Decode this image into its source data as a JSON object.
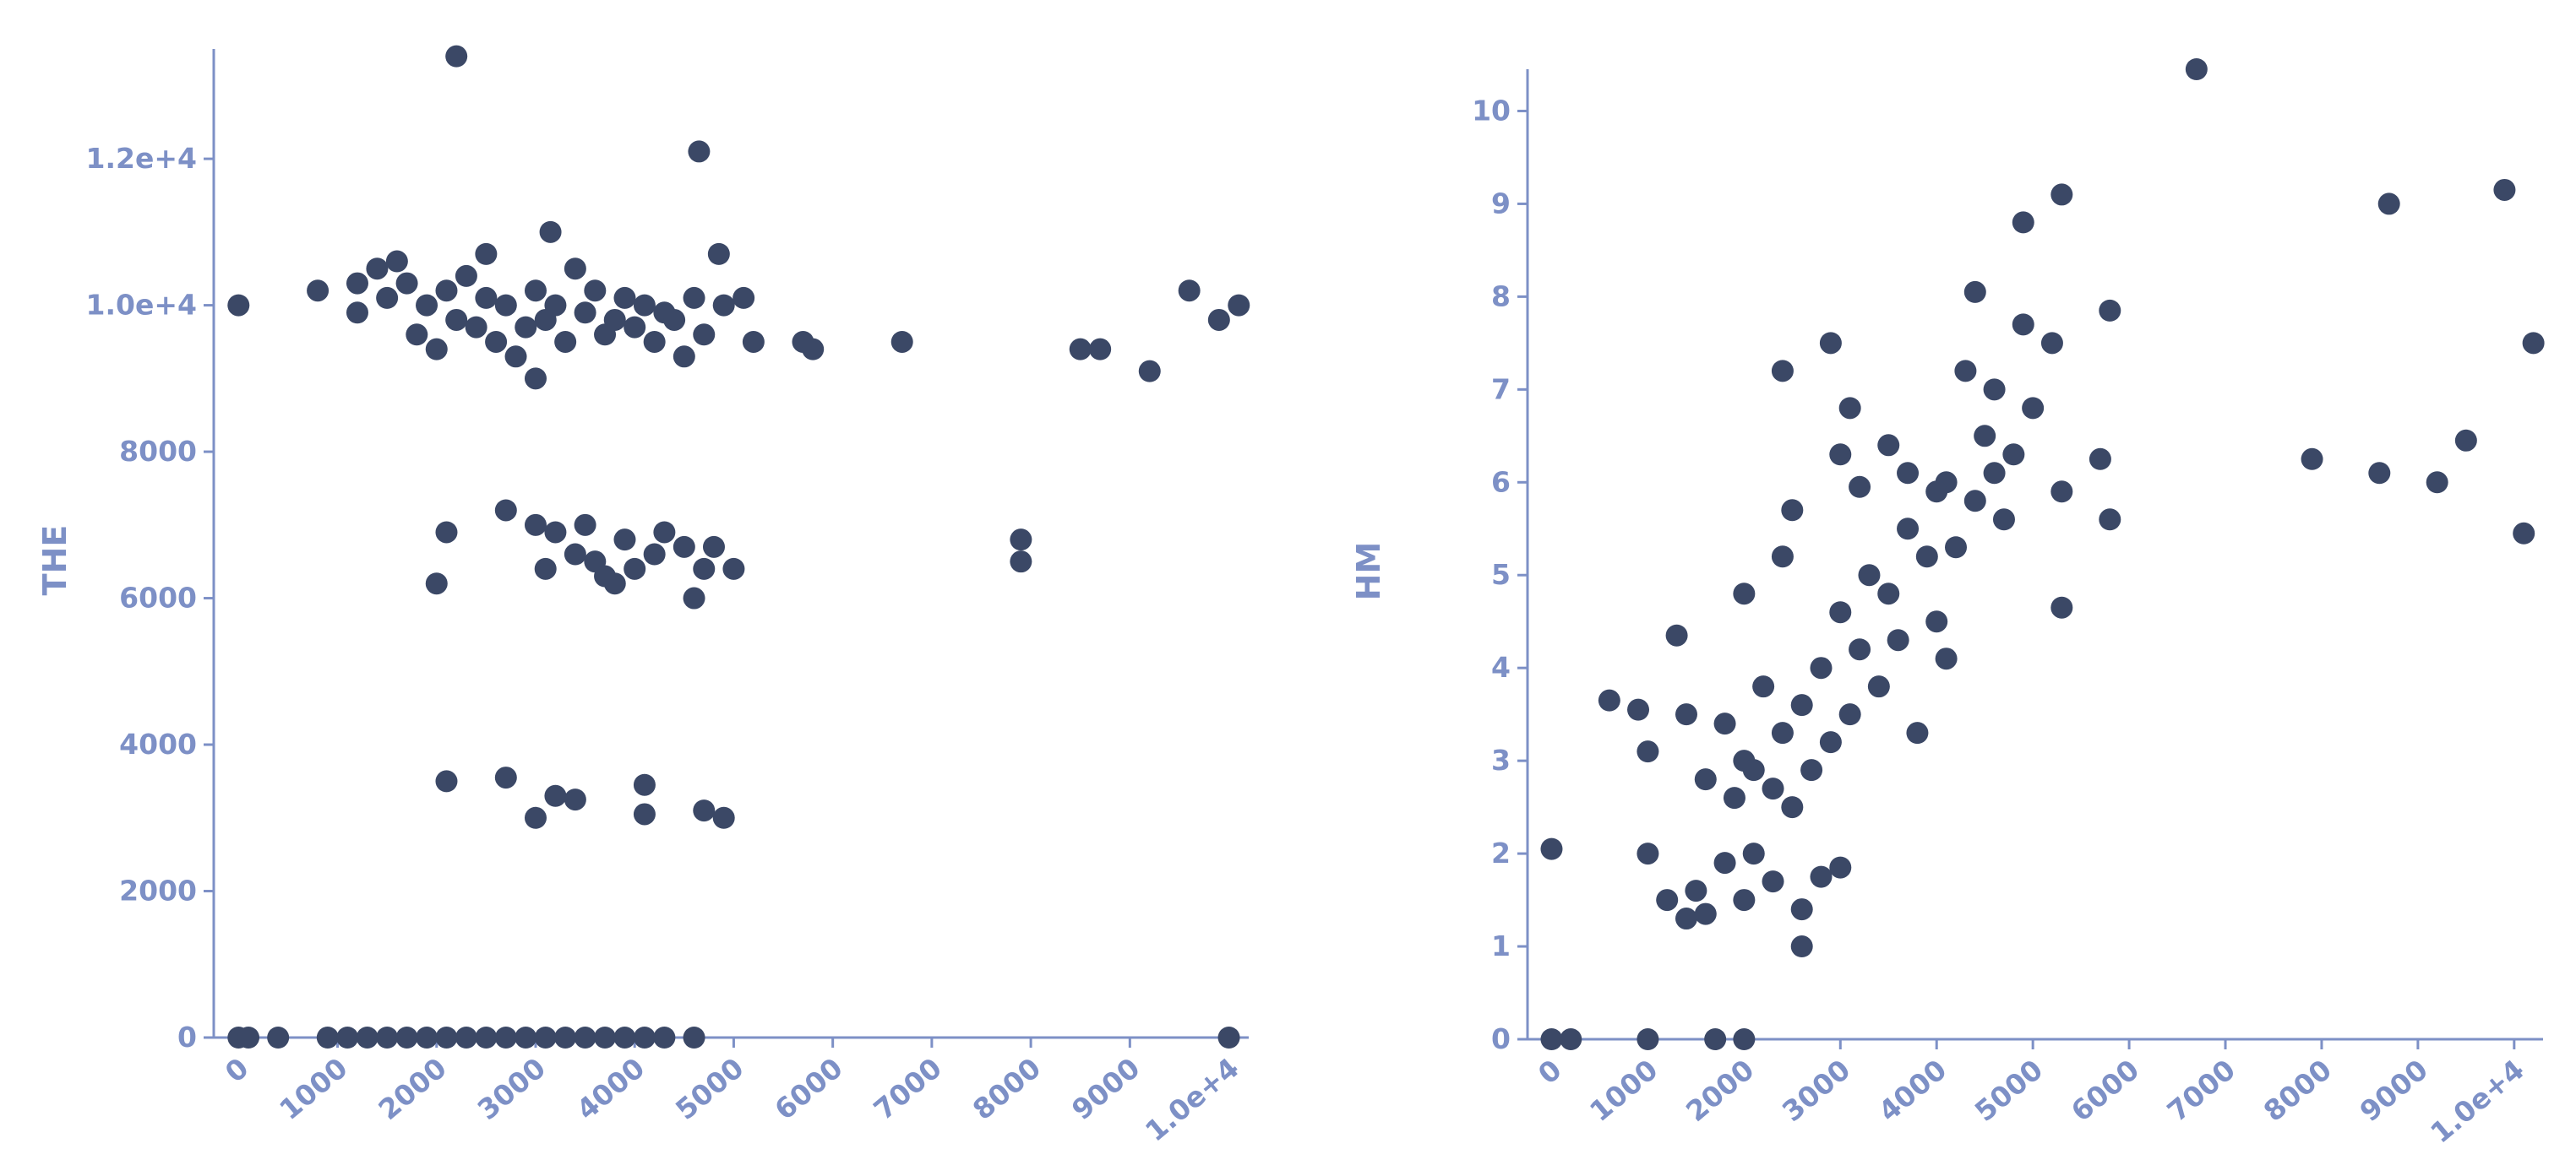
{
  "chart_data": [
    {
      "type": "scatter",
      "y_label": "THE",
      "color": "#3b4866",
      "axis_color": "#7d90c6",
      "xlim": [
        -250,
        10200
      ],
      "ylim": [
        0,
        13500
      ],
      "xticks": [
        0,
        1000,
        2000,
        3000,
        4000,
        5000,
        6000,
        7000,
        8000,
        9000,
        {
          "value": 10000,
          "label": "1.0e+4"
        }
      ],
      "yticks": [
        0,
        2000,
        4000,
        6000,
        8000,
        {
          "value": 10000,
          "label": "1.0e+4"
        },
        {
          "value": 12000,
          "label": "1.2e+4"
        }
      ],
      "x": [
        2200,
        4650,
        3150,
        4850,
        0,
        800,
        1200,
        1200,
        1400,
        1500,
        1600,
        1700,
        1800,
        1900,
        2000,
        2100,
        2200,
        2300,
        2400,
        2500,
        2500,
        2600,
        2700,
        2800,
        2900,
        3000,
        3000,
        3100,
        3200,
        3300,
        3400,
        3500,
        3600,
        3700,
        3800,
        3900,
        4000,
        4100,
        4200,
        4300,
        4400,
        4500,
        4600,
        4700,
        4900,
        5100,
        5200,
        5700,
        5800,
        6700,
        8500,
        8700,
        9200,
        9600,
        9900,
        10100,
        2000,
        2100,
        2700,
        3000,
        3100,
        3200,
        3400,
        3500,
        3600,
        3700,
        3800,
        3900,
        4000,
        4200,
        4300,
        4500,
        4600,
        4700,
        4800,
        5000,
        7900,
        7900,
        2100,
        2700,
        3000,
        3200,
        3400,
        4100,
        4100,
        4700,
        4900,
        0,
        100,
        400,
        900,
        1100,
        1300,
        1500,
        1700,
        1900,
        2100,
        2300,
        2500,
        2700,
        2900,
        3100,
        3300,
        3500,
        3700,
        3900,
        4100,
        4300,
        4600,
        10000
      ],
      "values": [
        13400,
        12100,
        11000,
        10700,
        10000,
        10200,
        10300,
        9900,
        10500,
        10100,
        10600,
        10300,
        9600,
        10000,
        9400,
        10200,
        9800,
        10400,
        9700,
        10100,
        10700,
        9500,
        10000,
        9300,
        9700,
        10200,
        9000,
        9800,
        10000,
        9500,
        10500,
        9900,
        10200,
        9600,
        9800,
        10100,
        9700,
        10000,
        9500,
        9900,
        9800,
        9300,
        10100,
        9600,
        10000,
        10100,
        9500,
        9500,
        9400,
        9500,
        9400,
        9400,
        9100,
        10200,
        9800,
        10000,
        6200,
        6900,
        7200,
        7000,
        6400,
        6900,
        6600,
        7000,
        6500,
        6300,
        6200,
        6800,
        6400,
        6600,
        6900,
        6700,
        6000,
        6400,
        6700,
        6400,
        6800,
        6500,
        3500,
        3550,
        3000,
        3300,
        3250,
        3450,
        3050,
        3100,
        3000,
        0,
        0,
        0,
        0,
        0,
        0,
        0,
        0,
        0,
        0,
        0,
        0,
        0,
        0,
        0,
        0,
        0,
        0,
        0,
        0,
        0,
        0,
        0
      ]
    },
    {
      "type": "scatter",
      "y_label": "HM",
      "color": "#3b4866",
      "axis_color": "#7d90c6",
      "xlim": [
        -250,
        10300
      ],
      "ylim": [
        0,
        10.45
      ],
      "xticks": [
        0,
        1000,
        2000,
        3000,
        4000,
        5000,
        6000,
        7000,
        8000,
        9000,
        {
          "value": 10000,
          "label": "1.0e+4"
        }
      ],
      "yticks": [
        0,
        1,
        2,
        3,
        4,
        5,
        6,
        7,
        8,
        9,
        10
      ],
      "x": [
        0,
        200,
        1000,
        1700,
        2000,
        0,
        600,
        900,
        1000,
        1300,
        1000,
        1200,
        1400,
        1500,
        1600,
        1800,
        2000,
        2100,
        2300,
        2600,
        2600,
        2800,
        3000,
        1400,
        1600,
        1800,
        1900,
        2000,
        2100,
        2200,
        2300,
        2400,
        2500,
        2600,
        2700,
        2800,
        2900,
        3000,
        3100,
        3200,
        3300,
        3400,
        3500,
        3600,
        3700,
        3800,
        3900,
        4000,
        4100,
        4200,
        4300,
        4400,
        4500,
        4600,
        4700,
        4800,
        4900,
        5000,
        5200,
        5300,
        5300,
        4100,
        2000,
        2400,
        2500,
        2400,
        2900,
        3000,
        3100,
        3500,
        4400,
        4900,
        5300,
        5800,
        5700,
        5800,
        4600,
        3700,
        4000,
        3200,
        6700,
        7900,
        8600,
        8700,
        9200,
        9500,
        9900,
        10100,
        10200
      ],
      "values": [
        0,
        0,
        0,
        0,
        0,
        2.05,
        3.65,
        3.55,
        3.1,
        4.35,
        2.0,
        1.5,
        1.3,
        1.6,
        1.35,
        1.9,
        1.5,
        2.0,
        1.7,
        1.0,
        1.4,
        1.75,
        1.85,
        3.5,
        2.8,
        3.4,
        2.6,
        3.0,
        2.9,
        3.8,
        2.7,
        3.3,
        2.5,
        3.6,
        2.9,
        4.0,
        3.2,
        4.6,
        3.5,
        4.2,
        5.0,
        3.8,
        4.8,
        4.3,
        5.5,
        3.3,
        5.2,
        4.5,
        6.0,
        5.3,
        7.2,
        5.8,
        6.5,
        7.0,
        5.6,
        6.3,
        7.7,
        6.8,
        7.5,
        5.9,
        4.65,
        4.1,
        4.8,
        5.2,
        5.7,
        7.2,
        7.5,
        6.3,
        6.8,
        6.4,
        8.05,
        8.8,
        9.1,
        7.85,
        6.25,
        5.6,
        6.1,
        6.1,
        5.9,
        5.95,
        10.45,
        6.25,
        6.1,
        9.0,
        6.0,
        6.45,
        9.15,
        5.45,
        7.5
      ]
    }
  ]
}
